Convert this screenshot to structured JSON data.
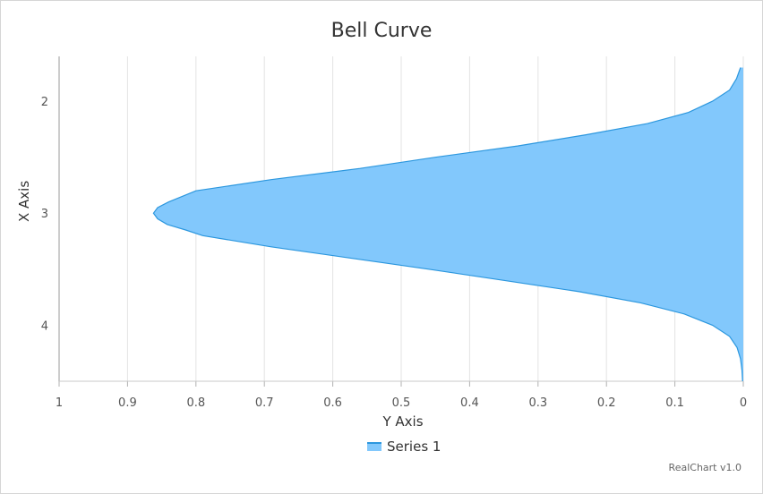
{
  "chart_data": {
    "type": "area",
    "orientation": "inverted",
    "title": "Bell Curve",
    "xlabel": "X Axis",
    "ylabel": "Y Axis",
    "x_ticks": [
      "2",
      "3",
      "4"
    ],
    "y_ticks": [
      "1",
      "0.9",
      "0.8",
      "0.7",
      "0.6",
      "0.5",
      "0.4",
      "0.3",
      "0.2",
      "0.1",
      "0"
    ],
    "xlim": [
      1.6,
      4.5
    ],
    "ylim": [
      0,
      1
    ],
    "y_reversed": true,
    "grid": true,
    "legend_position": "bottom",
    "series": [
      {
        "name": "Series 1",
        "color": "#82c8fc",
        "line_color": "#2c97de",
        "x": [
          1.7,
          1.8,
          1.9,
          2.0,
          2.1,
          2.2,
          2.3,
          2.4,
          2.5,
          2.6,
          2.7,
          2.8,
          2.9,
          2.95,
          3.0,
          3.05,
          3.1,
          3.15,
          3.2,
          3.3,
          3.4,
          3.5,
          3.6,
          3.7,
          3.8,
          3.9,
          4.0,
          4.1,
          4.2,
          4.3,
          4.4,
          4.5
        ],
        "y": [
          0.004,
          0.01,
          0.02,
          0.045,
          0.08,
          0.14,
          0.23,
          0.33,
          0.45,
          0.56,
          0.69,
          0.8,
          0.84,
          0.856,
          0.862,
          0.856,
          0.842,
          0.815,
          0.79,
          0.69,
          0.575,
          0.46,
          0.35,
          0.24,
          0.15,
          0.086,
          0.045,
          0.02,
          0.009,
          0.004,
          0.002,
          0.001
        ]
      }
    ]
  },
  "credits": "RealChart v1.0"
}
